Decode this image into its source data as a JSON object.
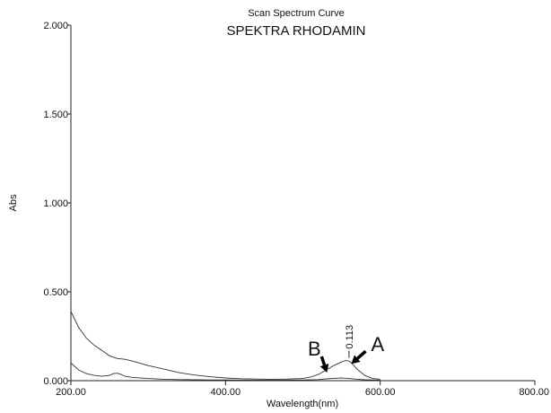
{
  "chart_data": {
    "type": "line",
    "title": "Scan Spectrum Curve",
    "subtitle": "SPEKTRA RHODAMIN",
    "xlabel": "Wavelength(nm)",
    "ylabel": "Abs",
    "xlim": [
      200,
      800
    ],
    "ylim": [
      0,
      2
    ],
    "xticks": [
      "200.00",
      "400.00",
      "600.00",
      "800.00"
    ],
    "yticks": [
      "0.000",
      "0.500",
      "1.000",
      "1.500",
      "2.000"
    ],
    "grid": false,
    "series": [
      {
        "x": [
          200,
          210,
          220,
          230,
          240,
          250,
          260,
          270,
          280,
          300,
          320,
          340,
          360,
          380,
          400,
          420,
          440,
          460,
          480,
          500,
          510,
          520,
          530,
          540,
          550,
          555,
          560,
          565,
          570,
          580,
          590,
          600
        ],
        "y": [
          0.39,
          0.3,
          0.24,
          0.2,
          0.17,
          0.14,
          0.125,
          0.12,
          0.11,
          0.085,
          0.065,
          0.045,
          0.032,
          0.022,
          0.015,
          0.011,
          0.009,
          0.008,
          0.009,
          0.012,
          0.02,
          0.035,
          0.06,
          0.085,
          0.105,
          0.113,
          0.11,
          0.09,
          0.065,
          0.03,
          0.012,
          0.008
        ]
      },
      {
        "x": [
          200,
          210,
          220,
          230,
          240,
          250,
          255,
          260,
          265,
          270,
          280,
          300,
          320,
          340,
          360,
          380,
          400,
          450,
          500,
          520,
          530,
          540,
          550,
          560,
          570,
          580,
          600
        ],
        "y": [
          0.1,
          0.06,
          0.04,
          0.03,
          0.025,
          0.03,
          0.04,
          0.042,
          0.035,
          0.025,
          0.018,
          0.012,
          0.008,
          0.006,
          0.005,
          0.004,
          0.004,
          0.003,
          0.004,
          0.006,
          0.01,
          0.013,
          0.015,
          0.012,
          0.008,
          0.005,
          0.003
        ]
      }
    ],
    "annotations": [
      {
        "text": "A",
        "target_x": 558,
        "target_y": 0.105
      },
      {
        "text": "B",
        "target_x": 530,
        "target_y": 0.03
      },
      {
        "text": "0.113",
        "x": 555,
        "y": 0.113
      }
    ]
  }
}
